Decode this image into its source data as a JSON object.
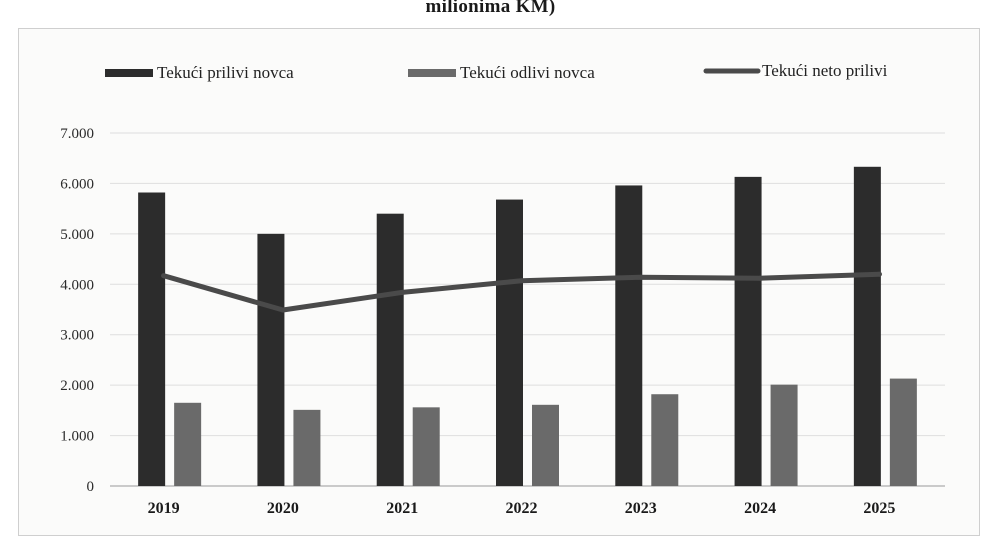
{
  "chart_data": {
    "type": "bar",
    "title": "milionima KM)",
    "categories": [
      "2019",
      "2020",
      "2021",
      "2022",
      "2023",
      "2024",
      "2025"
    ],
    "series": [
      {
        "name": "Tekući prilivi novca",
        "kind": "bar",
        "color": "#2c2c2c",
        "values": [
          5820,
          5000,
          5400,
          5680,
          5960,
          6130,
          6330
        ]
      },
      {
        "name": "Tekući odlivi novca",
        "kind": "bar",
        "color": "#6a6a6a",
        "values": [
          1650,
          1510,
          1560,
          1610,
          1820,
          2010,
          2130
        ]
      },
      {
        "name": "Tekući neto prilivi",
        "kind": "line",
        "color": "#4a4a4a",
        "values": [
          4170,
          3490,
          3840,
          4070,
          4140,
          4120,
          4200
        ]
      }
    ],
    "yticks": [
      "0",
      "1.000",
      "2.000",
      "3.000",
      "4.000",
      "5.000",
      "6.000",
      "7.000"
    ],
    "ylim": [
      0,
      7000
    ],
    "grid": true,
    "legend_position": "top"
  }
}
